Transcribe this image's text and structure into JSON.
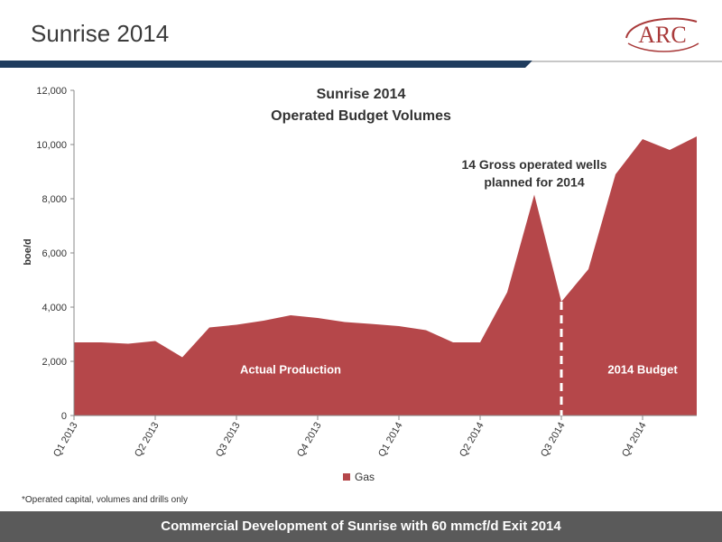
{
  "slide": {
    "title": "Sunrise 2014",
    "logo_text": "ARC",
    "footnote": "*Operated capital, volumes and drills only",
    "footer": "Commercial Development of Sunrise with 60 mmcf/d Exit 2014"
  },
  "colors": {
    "series": "#b5474a",
    "header_bar": "#1f3c5e",
    "header_bar_edge": "#c7c7c7",
    "footer": "#5a5a5a",
    "logo": "#a93a3a"
  },
  "chart_data": {
    "type": "area",
    "title": "Sunrise 2014",
    "subtitle": "Operated Budget Volumes",
    "xlabel": "",
    "ylabel": "boe/d",
    "ylim": [
      0,
      12000
    ],
    "yticks": [
      0,
      2000,
      4000,
      6000,
      8000,
      10000,
      12000
    ],
    "ytick_labels": [
      "0",
      "2,000",
      "4,000",
      "6,000",
      "8,000",
      "10,000",
      "12,000"
    ],
    "grid": false,
    "legend": "bottom",
    "xtick_labels": [
      "Q1 2013",
      "Q2 2013",
      "Q3 2013",
      "Q4 2013",
      "Q1 2014",
      "Q2 2014",
      "Q3 2014",
      "Q4 2014"
    ],
    "xtick_months": [
      0,
      3,
      6,
      9,
      12,
      15,
      18,
      21
    ],
    "months": [
      "Jan 2013",
      "Feb 2013",
      "Mar 2013",
      "Apr 2013",
      "May 2013",
      "Jun 2013",
      "Jul 2013",
      "Aug 2013",
      "Sep 2013",
      "Oct 2013",
      "Nov 2013",
      "Dec 2013",
      "Jan 2014",
      "Feb 2014",
      "Mar 2014",
      "Apr 2014",
      "May 2014",
      "Jun 2014",
      "Jul 2014",
      "Aug 2014",
      "Sep 2014",
      "Oct 2014",
      "Nov 2014",
      "Dec 2014"
    ],
    "series": [
      {
        "name": "Gas",
        "values": [
          2700,
          2700,
          2650,
          2750,
          2150,
          3250,
          3350,
          3500,
          3700,
          3600,
          3450,
          3380,
          3300,
          3150,
          2700,
          2700,
          4550,
          8150,
          4200,
          5400,
          8900,
          10200,
          9800,
          10300
        ]
      }
    ],
    "divider_month": 18,
    "annotations": [
      {
        "text": "14 Gross operated wells",
        "month": 17,
        "value": 9100
      },
      {
        "text": "planned for 2014",
        "month": 17,
        "value": 8450
      },
      {
        "text": "Actual Production",
        "month": 8,
        "value": 1550
      },
      {
        "text": "2014 Budget",
        "month": 21,
        "value": 1550
      }
    ]
  }
}
